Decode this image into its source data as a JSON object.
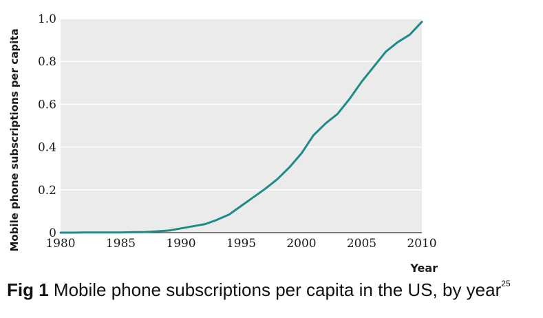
{
  "chart_data": {
    "type": "line",
    "xlabel": "Year",
    "ylabel": "Mobile phone subscriptions per capita",
    "xlim": [
      1980,
      2010
    ],
    "ylim": [
      0,
      1.0
    ],
    "x_ticks": [
      "1980",
      "1985",
      "1990",
      "1995",
      "2000",
      "2005",
      "2010"
    ],
    "y_ticks": [
      "0",
      "0.2",
      "0.4",
      "0.6",
      "0.8",
      "1.0"
    ],
    "grid": "horizontal",
    "series": [
      {
        "color": "#1e8b84",
        "x": [
          1980,
          1981,
          1982,
          1983,
          1984,
          1985,
          1986,
          1987,
          1988,
          1989,
          1990,
          1991,
          1992,
          1993,
          1994,
          1995,
          1996,
          1997,
          1998,
          1999,
          2000,
          2001,
          2002,
          2003,
          2004,
          2005,
          2006,
          2007,
          2008,
          2009,
          2010
        ],
        "y": [
          0,
          0,
          0.001,
          0.001,
          0.001,
          0.001,
          0.002,
          0.003,
          0.006,
          0.01,
          0.02,
          0.03,
          0.04,
          0.06,
          0.085,
          0.125,
          0.165,
          0.205,
          0.25,
          0.305,
          0.37,
          0.455,
          0.51,
          0.555,
          0.625,
          0.705,
          0.775,
          0.845,
          0.89,
          0.925,
          0.985
        ]
      }
    ]
  },
  "caption": {
    "prefix": "Fig 1",
    "text": "Mobile phone subscriptions per capita in the US, by year",
    "ref": "25"
  }
}
